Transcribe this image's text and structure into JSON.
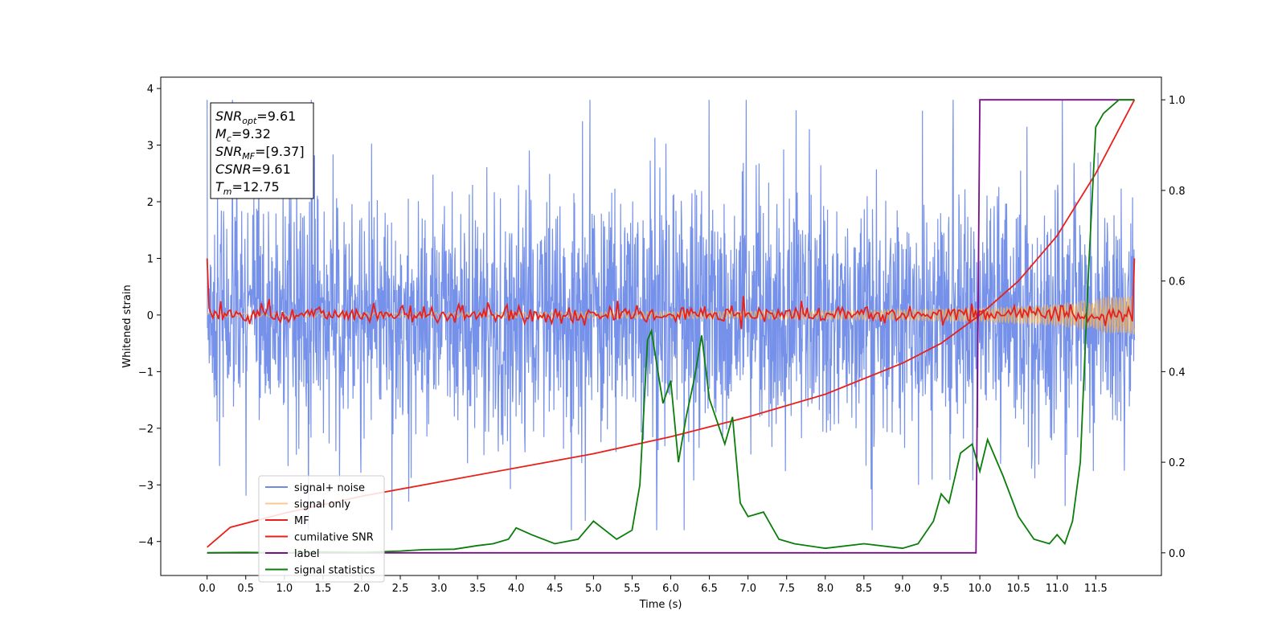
{
  "chart_data": {
    "type": "line",
    "xlabel": "Time (s)",
    "ylabel": "Whitened strain",
    "xlim": [
      -0.6,
      12.35
    ],
    "ylim": [
      -4.6,
      4.2
    ],
    "y2lim": [
      -0.05,
      1.05
    ],
    "xticks": [
      "0.0",
      "0.5",
      "1.0",
      "1.5",
      "2.0",
      "2.5",
      "3.0",
      "3.5",
      "4.0",
      "4.5",
      "5.0",
      "5.5",
      "6.0",
      "6.5",
      "7.0",
      "7.5",
      "8.0",
      "8.5",
      "9.0",
      "9.5",
      "10.0",
      "10.5",
      "11.0",
      "11.5"
    ],
    "yticks": [
      "4",
      "3",
      "2",
      "1",
      "0",
      "−1",
      "−2",
      "−3",
      "−4"
    ],
    "y2ticks": [
      "1.0",
      "0.8",
      "0.6",
      "0.4",
      "0.2",
      "0.0"
    ],
    "grid": false,
    "legend_position": "lower-left",
    "series": [
      {
        "name": "signal+ noise",
        "axis": "left",
        "color": "#6f8be8",
        "style": "noise_band",
        "note_range": [
          -3.8,
          3.8
        ]
      },
      {
        "name": "signal only",
        "axis": "left",
        "color": "#f5b35d",
        "style": "chirp",
        "x": [
          0,
          2,
          4,
          6,
          8,
          9,
          10,
          10.5,
          11,
          11.5,
          12
        ],
        "amp": [
          0.03,
          0.04,
          0.05,
          0.06,
          0.08,
          0.1,
          0.13,
          0.16,
          0.2,
          0.28,
          0.42
        ]
      },
      {
        "name": "MF",
        "axis": "left",
        "color": "#e8201a",
        "style": "mf_noise",
        "start": 1.0,
        "end": 1.0,
        "spread": 0.15
      },
      {
        "name": "cumilative SNR",
        "axis": "left",
        "color": "#e8201a",
        "x": [
          0,
          0.3,
          1,
          2,
          3,
          4,
          5,
          6,
          7,
          8,
          9,
          9.5,
          10,
          10.5,
          11,
          11.5,
          12
        ],
        "y": [
          -4.1,
          -3.75,
          -3.5,
          -3.2,
          -2.95,
          -2.7,
          -2.45,
          -2.15,
          -1.8,
          -1.4,
          -0.85,
          -0.5,
          0.0,
          0.6,
          1.4,
          2.5,
          3.8
        ]
      },
      {
        "name": "label",
        "axis": "right",
        "color": "#7a0e8a",
        "x": [
          0,
          9.95,
          10.0,
          12
        ],
        "y": [
          0.0,
          0.0,
          1.0,
          1.0
        ]
      },
      {
        "name": "signal statistics",
        "axis": "right",
        "color": "#0a7d0a",
        "x": [
          0,
          0.5,
          1.0,
          1.5,
          2.0,
          2.5,
          2.8,
          3.2,
          3.5,
          3.7,
          3.9,
          4.0,
          4.2,
          4.5,
          4.8,
          5.0,
          5.3,
          5.5,
          5.6,
          5.7,
          5.75,
          5.9,
          6.0,
          6.1,
          6.2,
          6.3,
          6.4,
          6.5,
          6.7,
          6.8,
          6.9,
          7.0,
          7.2,
          7.4,
          7.6,
          8.0,
          8.5,
          9.0,
          9.2,
          9.4,
          9.5,
          9.6,
          9.75,
          9.9,
          10.0,
          10.1,
          10.3,
          10.5,
          10.7,
          10.9,
          11.0,
          11.1,
          11.2,
          11.3,
          11.4,
          11.5,
          11.6,
          11.8,
          12.0
        ],
        "y": [
          0.0,
          0.001,
          0.0,
          0.002,
          0.001,
          0.004,
          0.007,
          0.008,
          0.016,
          0.02,
          0.03,
          0.055,
          0.04,
          0.02,
          0.03,
          0.07,
          0.03,
          0.05,
          0.15,
          0.47,
          0.49,
          0.33,
          0.38,
          0.2,
          0.3,
          0.38,
          0.48,
          0.34,
          0.24,
          0.3,
          0.11,
          0.08,
          0.09,
          0.03,
          0.02,
          0.01,
          0.02,
          0.01,
          0.02,
          0.07,
          0.13,
          0.11,
          0.22,
          0.24,
          0.18,
          0.25,
          0.17,
          0.08,
          0.03,
          0.02,
          0.04,
          0.02,
          0.07,
          0.2,
          0.6,
          0.94,
          0.97,
          1.0,
          1.0
        ]
      }
    ],
    "annotation_box": [
      {
        "base": "SNR",
        "sub": "opt",
        "value": "=9.61"
      },
      {
        "base": "M",
        "sub": "c",
        "value": "=9.32"
      },
      {
        "base": "SNR",
        "sub": "MF",
        "value": "=[9.37]"
      },
      {
        "base": "CSNR",
        "sub": "",
        "value": "=9.61"
      },
      {
        "base": "T",
        "sub": "m",
        "value": "=12.75"
      }
    ]
  }
}
